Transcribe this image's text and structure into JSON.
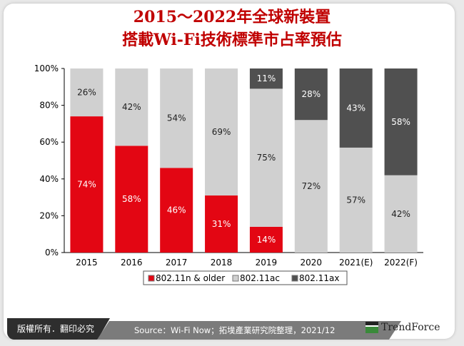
{
  "title_line1": "2015～2022年全球新裝置",
  "title_line2": "搭載Wi-Fi技術標準市占率預估",
  "footer": {
    "copyright": "版權所有．翻印必究",
    "source": "Source：Wi-Fi Now；拓墣產業研究院整理，2021/12",
    "logo": "TrendForce"
  },
  "chart_data": {
    "type": "bar",
    "stacked": true,
    "categories": [
      "2015",
      "2016",
      "2017",
      "2018",
      "2019",
      "2020",
      "2021(E)",
      "2022(F)"
    ],
    "series": [
      {
        "name": "802.11n & older",
        "color": "#e30613",
        "values": [
          74,
          58,
          46,
          31,
          14,
          0,
          0,
          0
        ]
      },
      {
        "name": "802.11ac",
        "color": "#d0d0d0",
        "values": [
          26,
          42,
          54,
          69,
          75,
          72,
          57,
          42
        ]
      },
      {
        "name": "802.11ax",
        "color": "#505050",
        "values": [
          0,
          0,
          0,
          0,
          11,
          28,
          43,
          58
        ]
      }
    ],
    "yticks": [
      "0%",
      "20%",
      "40%",
      "60%",
      "80%",
      "100%"
    ],
    "ylim": [
      0,
      100
    ],
    "legend": "bottom",
    "grid": false
  }
}
